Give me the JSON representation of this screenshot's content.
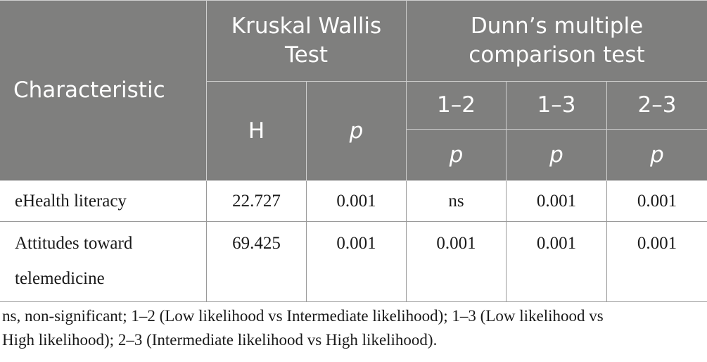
{
  "table": {
    "header": {
      "characteristic": "Characteristic",
      "kruskal_line1": "Kruskal Wallis",
      "kruskal_line2": "Test",
      "dunn_line1": "Dunn’s multiple",
      "dunn_line2": "comparison test",
      "h": "H",
      "p": "p",
      "pair_1_2": "1–2",
      "pair_1_3": "1–3",
      "pair_2_3": "2–3",
      "p_1_2": "p",
      "p_1_3": "p",
      "p_2_3": "p"
    },
    "rows": [
      {
        "characteristic": "eHealth literacy",
        "h": "22.727",
        "p": "0.001",
        "p_1_2": "ns",
        "p_1_3": "0.001",
        "p_2_3": "0.001"
      },
      {
        "characteristic_line1": "Attitudes toward",
        "characteristic_line2": "telemedicine",
        "h": "69.425",
        "p": "0.001",
        "p_1_2": "0.001",
        "p_1_3": "0.001",
        "p_2_3": "0.001"
      }
    ]
  },
  "footnote": {
    "line1": "ns, non-significant; 1–2 (Low likelihood vs Intermediate likelihood); 1–3 (Low likelihood vs",
    "line2": "High likelihood); 2–3 (Intermediate likelihood vs High likelihood)."
  }
}
